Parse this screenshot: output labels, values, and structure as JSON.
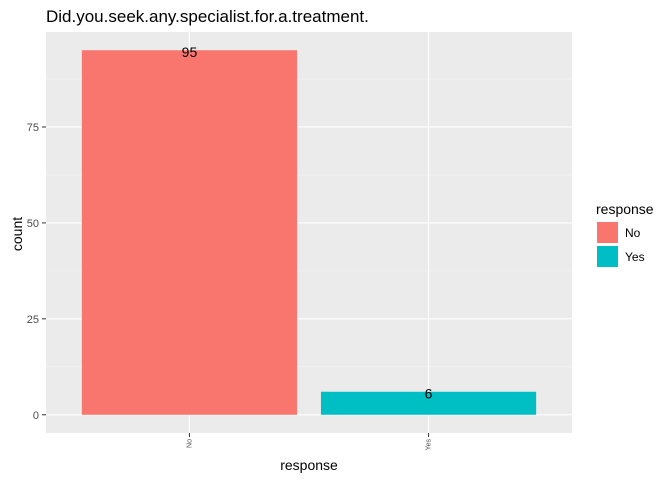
{
  "chart_data": {
    "type": "bar",
    "title": "Did.you.seek.any.specialist.for.a.treatment.",
    "xlabel": "response",
    "ylabel": "count",
    "categories": [
      "No",
      "Yes"
    ],
    "values": [
      95,
      6
    ],
    "data_labels": [
      "95",
      "6"
    ],
    "colors": [
      "#F8766D",
      "#00BFC4"
    ],
    "ylim": [
      -4.75,
      99.75
    ],
    "yticks": [
      0,
      25,
      50,
      75
    ],
    "ytick_labels": [
      "0",
      "25",
      "50",
      "75"
    ],
    "grid": true,
    "legend": {
      "title": "response",
      "position": "right",
      "entries": [
        "No",
        "Yes"
      ]
    }
  },
  "theme": {
    "panel_background": "#EBEBEB",
    "grid_major": "#FFFFFF",
    "grid_minor": "#F5F5F5",
    "tick_color": "#333333"
  }
}
